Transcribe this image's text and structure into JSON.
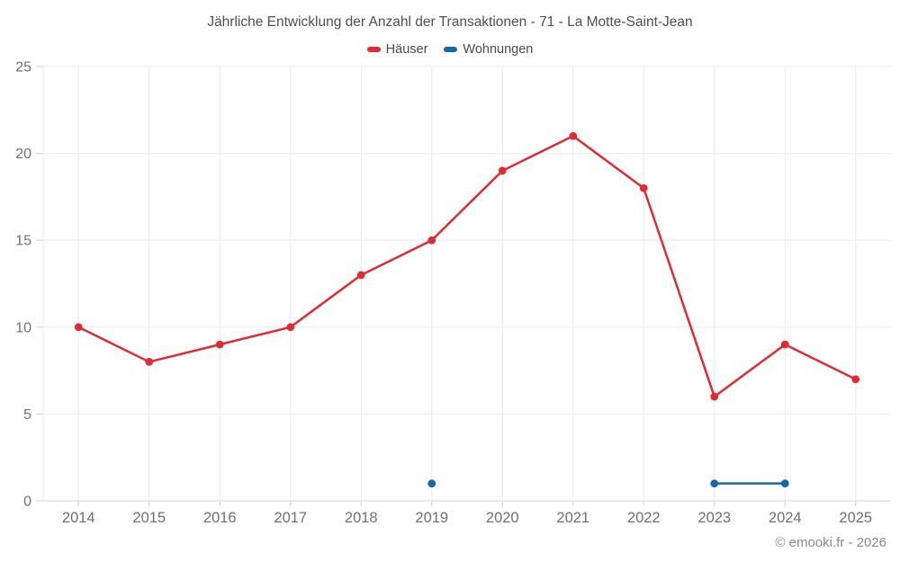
{
  "page": {
    "footer": "© emooki.fr - 2026"
  },
  "chart_data": {
    "type": "line",
    "title": "Jährliche Entwicklung der Anzahl der Transaktionen - 71 - La Motte-Saint-Jean",
    "categories": [
      "2014",
      "2015",
      "2016",
      "2017",
      "2018",
      "2019",
      "2020",
      "2021",
      "2022",
      "2023",
      "2024",
      "2025"
    ],
    "series": [
      {
        "name": "Häuser",
        "color": "#e02b35",
        "values": [
          10,
          8,
          9,
          10,
          13,
          15,
          19,
          21,
          18,
          6,
          9,
          7
        ]
      },
      {
        "name": "Wohnungen",
        "color": "#1569a3",
        "values": [
          null,
          null,
          null,
          null,
          null,
          1,
          null,
          null,
          null,
          1,
          1,
          null
        ]
      }
    ],
    "ylim": [
      0,
      25
    ],
    "yticks": [
      0,
      5,
      10,
      15,
      20,
      25
    ],
    "grid": true,
    "legend_position": "top"
  },
  "style": {
    "grid_color": "#ececec",
    "axis_color": "#d6d6d6",
    "tick_color": "#d0d0d0",
    "title_color": "#4f4f4f",
    "legend_text_color": "#4a4a4a",
    "label_color": "#707070",
    "footer_color": "#8a8a8a"
  }
}
